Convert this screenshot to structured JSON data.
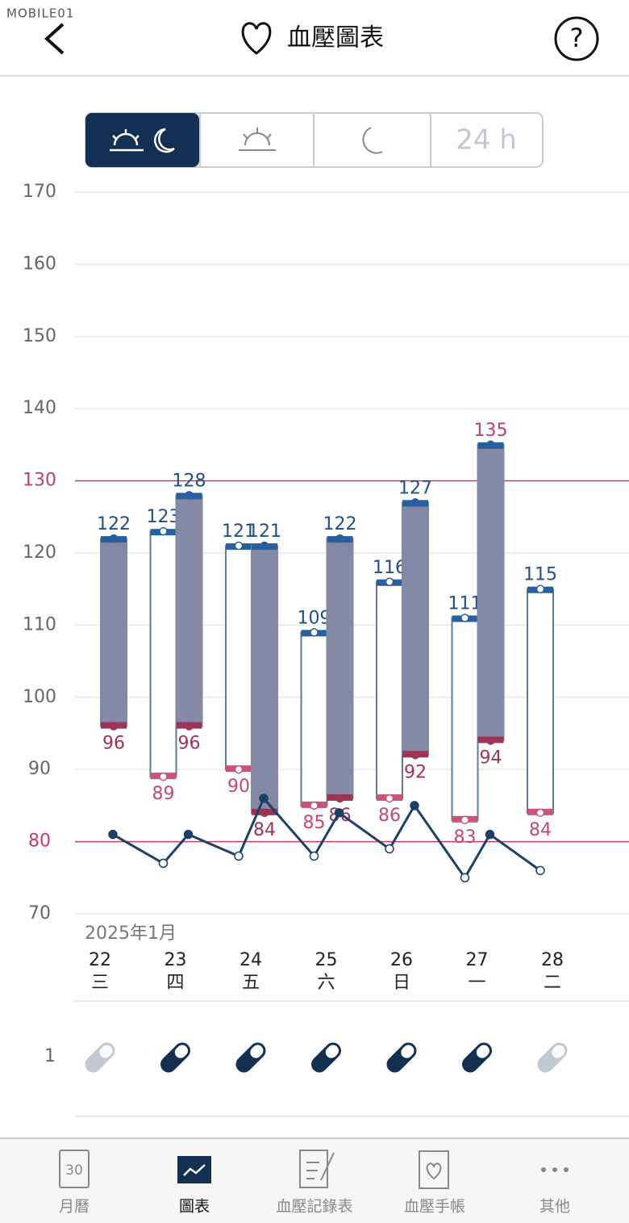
{
  "watermark": "MOBILE01",
  "header": {
    "title": "血壓圖表"
  },
  "tab_24h_label": "24 h",
  "chart_data": {
    "type": "range-bar",
    "date_label": "2025年1月",
    "categories": [
      "22",
      "23",
      "24",
      "25",
      "26",
      "27",
      "28"
    ],
    "weekdays": [
      "三",
      "四",
      "五",
      "六",
      "日",
      "一",
      "二"
    ],
    "ylim": [
      70,
      170
    ],
    "yticks": [
      70,
      80,
      90,
      100,
      110,
      120,
      130,
      140,
      150,
      160,
      170
    ],
    "grid": true,
    "reference_lines": {
      "values": [
        130,
        80
      ],
      "color": "#c0406a"
    },
    "morning": {
      "systolic": [
        null,
        123,
        121,
        109,
        116,
        111,
        115
      ],
      "diastolic": [
        null,
        89,
        90,
        85,
        86,
        83,
        84
      ],
      "fill": "#ffffff",
      "stroke": "#5f7b96",
      "systolic_color": "#2a5f9e",
      "diastolic_color": "#c85478"
    },
    "evening": {
      "systolic": [
        122,
        128,
        121,
        122,
        127,
        135,
        null
      ],
      "diastolic": [
        96,
        96,
        84,
        86,
        92,
        94,
        null
      ],
      "fill": "#8589a6",
      "stroke": "#7d8aa0",
      "systolic_color": "#2a5f9e",
      "diastolic_color": "#9c3458"
    },
    "pulse": {
      "values": [
        null,
        81,
        77,
        81,
        78,
        86,
        78,
        84,
        79,
        85,
        75,
        81,
        76,
        null
      ],
      "color": "#1e3f66"
    }
  },
  "medication": {
    "label": "1",
    "taken": [
      false,
      true,
      true,
      true,
      true,
      true,
      false
    ]
  },
  "nav": {
    "items": [
      "月曆",
      "圖表",
      "血壓記錄表",
      "血壓手帳",
      "其他"
    ],
    "selected": 1,
    "calendar_day": "30"
  }
}
